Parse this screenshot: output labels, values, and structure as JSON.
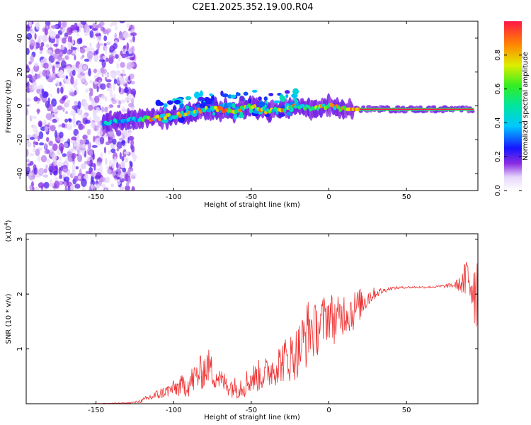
{
  "colors": {
    "snr_line": "#ee3333",
    "axis": "#000000"
  },
  "chart_data": [
    {
      "type": "heatmap",
      "title": "C2E1.2025.352.19.00.R04",
      "xlabel": "Height of straight line (km)",
      "ylabel": "Frequency (Hz)",
      "xlim": [
        -195,
        96
      ],
      "ylim": [
        -50,
        50
      ],
      "xticks": [
        -150,
        -100,
        -50,
        0,
        50
      ],
      "xtick_labels": [
        "-150",
        "-100",
        "-50",
        "0",
        "50"
      ],
      "yticks": [
        -40,
        -20,
        0,
        20,
        40
      ],
      "ytick_labels": [
        "-40",
        "-20",
        "0",
        "20",
        "40"
      ],
      "ridge": {
        "x": [
          -145,
          -125,
          -110,
          -100,
          -90,
          -80,
          -70,
          -60,
          -50,
          -40,
          -30,
          -20,
          -10,
          0,
          10,
          30,
          60,
          93
        ],
        "y": [
          -10,
          -8,
          -7,
          -6,
          -4,
          -2,
          -2,
          -3,
          0,
          -3,
          -2,
          0,
          -2,
          0,
          -2,
          -2,
          -2,
          -2
        ]
      },
      "noise_region_x": [
        -195,
        -125
      ],
      "colorbar": {
        "label": "Normalized spectral amplitude",
        "range": [
          0.0,
          1.0
        ],
        "ticks": [
          0.0,
          0.2,
          0.4,
          0.6,
          0.8
        ],
        "tick_labels": [
          "0.0",
          "0.2",
          "0.4",
          "0.6",
          "0.8"
        ]
      }
    },
    {
      "type": "line",
      "title": "",
      "xlabel": "Height of straight line (km)",
      "ylabel": "SNR (10 * v/v)",
      "scale_label": "(x10",
      "scale_exponent": "4",
      "scale_close": ")",
      "xlim": [
        -195,
        96
      ],
      "ylim": [
        0,
        3.1
      ],
      "xticks": [
        -150,
        -100,
        -50,
        0,
        50
      ],
      "xtick_labels": [
        "-150",
        "-100",
        "-50",
        "0",
        "50"
      ],
      "yticks": [
        1,
        2,
        3
      ],
      "ytick_labels": [
        "1",
        "2",
        "3"
      ],
      "series": [
        {
          "name": "SNR",
          "x": [
            -195,
            -160,
            -130,
            -125,
            -120,
            -115,
            -110,
            -105,
            -100,
            -95,
            -90,
            -85,
            -80,
            -77,
            -75,
            -72,
            -70,
            -65,
            -60,
            -55,
            -50,
            -45,
            -40,
            -35,
            -30,
            -25,
            -20,
            -15,
            -12,
            -10,
            -5,
            0,
            5,
            10,
            15,
            20,
            25,
            30,
            35,
            40,
            50,
            60,
            70,
            80,
            85,
            88,
            90,
            92,
            94,
            96
          ],
          "baseline": [
            0.0,
            0.0,
            0.01,
            0.02,
            0.05,
            0.1,
            0.15,
            0.2,
            0.25,
            0.28,
            0.32,
            0.45,
            0.55,
            0.65,
            0.5,
            0.45,
            0.4,
            0.3,
            0.25,
            0.3,
            0.4,
            0.45,
            0.5,
            0.6,
            0.7,
            0.75,
            0.85,
            1.1,
            1.3,
            1.2,
            1.35,
            1.55,
            1.4,
            1.6,
            1.6,
            1.75,
            1.9,
            2.0,
            2.05,
            2.1,
            2.12,
            2.12,
            2.13,
            2.15,
            2.15,
            2.15,
            2.2,
            2.1,
            2.0,
            1.9
          ],
          "spread": [
            0.0,
            0.0,
            0.01,
            0.02,
            0.04,
            0.08,
            0.1,
            0.12,
            0.15,
            0.2,
            0.25,
            0.3,
            0.35,
            0.3,
            0.3,
            0.25,
            0.2,
            0.2,
            0.2,
            0.25,
            0.25,
            0.3,
            0.3,
            0.35,
            0.4,
            0.45,
            0.5,
            0.6,
            0.6,
            0.5,
            0.5,
            0.45,
            0.45,
            0.4,
            0.4,
            0.3,
            0.2,
            0.1,
            0.05,
            0.03,
            0.02,
            0.02,
            0.02,
            0.05,
            0.15,
            0.4,
            0.6,
            0.8,
            0.8,
            0.8
          ]
        }
      ]
    }
  ]
}
